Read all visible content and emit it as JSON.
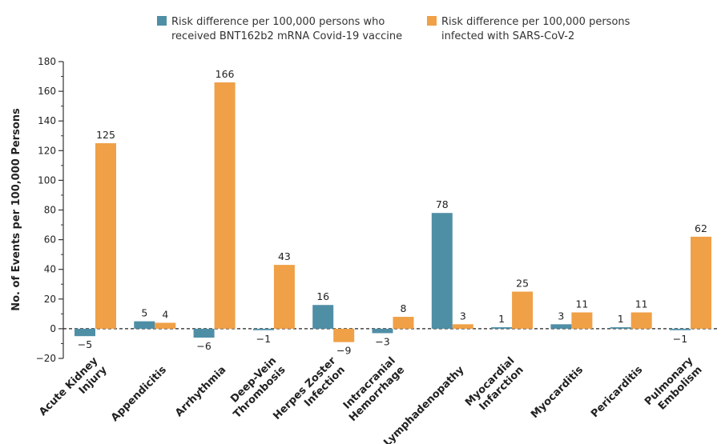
{
  "chart_data": {
    "type": "bar",
    "ylabel": "No. of Events per 100,000 Persons",
    "ylim": [
      -20,
      180
    ],
    "yticks": [
      -20,
      0,
      20,
      40,
      60,
      80,
      100,
      120,
      140,
      160,
      180
    ],
    "ytick_labels": [
      "−20",
      "0",
      "20",
      "40",
      "60",
      "80",
      "100",
      "120",
      "140",
      "160",
      "180"
    ],
    "categories": [
      [
        "Acute Kidney",
        "Injury"
      ],
      [
        "Appendicitis"
      ],
      [
        "Arrhythmia"
      ],
      [
        "Deep-Vein",
        "Thrombosis"
      ],
      [
        "Herpes Zoster",
        "Infection"
      ],
      [
        "Intracranial",
        "Hemorrhage"
      ],
      [
        "Lymphadenopathy"
      ],
      [
        "Myocardial",
        "Infarction"
      ],
      [
        "Myocarditis"
      ],
      [
        "Pericarditis"
      ],
      [
        "Pulmonary",
        "Embolism"
      ]
    ],
    "series": [
      {
        "name": "Risk difference per 100,000 persons who received BNT162b2 mRNA Covid-19 vaccine",
        "legend_lines": [
          "Risk difference per 100,000 persons who",
          "received BNT162b2 mRNA Covid-19 vaccine"
        ],
        "color": "#4f8fa6",
        "values": [
          -5,
          5,
          -6,
          -1,
          16,
          -3,
          78,
          1,
          3,
          1,
          -1
        ],
        "labels": [
          "−5",
          "5",
          "−6",
          "−1",
          "16",
          "−3",
          "78",
          "1",
          "3",
          "1",
          "−1"
        ]
      },
      {
        "name": "Risk difference per 100,000 persons infected with SARS-CoV-2",
        "legend_lines": [
          "Risk difference per 100,000 persons",
          "infected with SARS-CoV-2"
        ],
        "color": "#f0a046",
        "values": [
          125,
          4,
          166,
          43,
          -9,
          8,
          3,
          25,
          11,
          11,
          62
        ],
        "labels": [
          "125",
          "4",
          "166",
          "43",
          "−9",
          "8",
          "3",
          "25",
          "11",
          "11",
          "62"
        ]
      }
    ],
    "baseline": "dashed line at 0",
    "legend_position": "top"
  }
}
